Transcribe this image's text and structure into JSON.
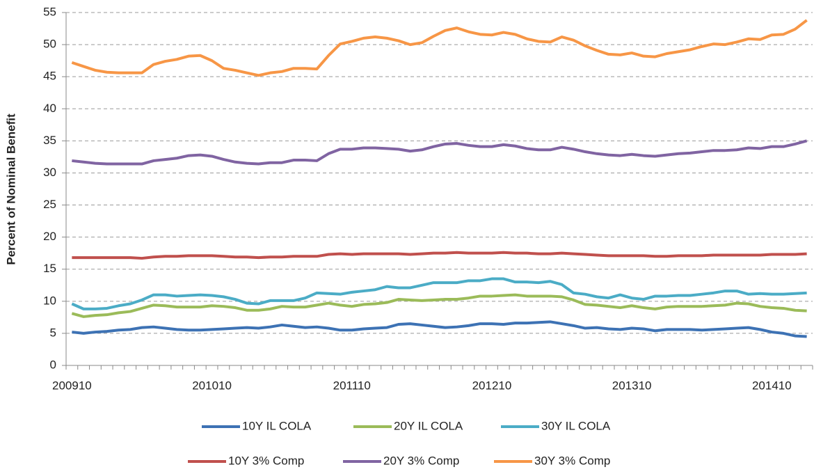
{
  "chart_data": {
    "type": "line",
    "y_label": "Percent of Nominal Benefit",
    "categories": [
      "200910",
      null,
      null,
      null,
      null,
      null,
      null,
      null,
      null,
      null,
      null,
      null,
      "201010",
      null,
      null,
      null,
      null,
      null,
      null,
      null,
      null,
      null,
      null,
      null,
      "201110",
      null,
      null,
      null,
      null,
      null,
      null,
      null,
      null,
      null,
      null,
      null,
      "201210",
      null,
      null,
      null,
      null,
      null,
      null,
      null,
      null,
      null,
      null,
      null,
      "201310",
      null,
      null,
      null,
      null,
      null,
      null,
      null,
      null,
      null,
      null,
      null,
      "201410",
      null,
      null,
      null
    ],
    "ylim": [
      0,
      55
    ],
    "yticks": [
      0,
      5,
      10,
      15,
      20,
      25,
      30,
      35,
      40,
      45,
      50,
      55
    ],
    "grid": true,
    "legend": "bottom",
    "series": [
      {
        "name": "10Y IL COLA",
        "color": "#3d72b4",
        "values": [
          5.2,
          5.0,
          5.2,
          5.3,
          5.5,
          5.6,
          5.9,
          6.0,
          5.8,
          5.6,
          5.5,
          5.5,
          5.6,
          5.7,
          5.8,
          5.9,
          5.8,
          6.0,
          6.3,
          6.1,
          5.9,
          6.0,
          5.8,
          5.5,
          5.5,
          5.7,
          5.8,
          5.9,
          6.4,
          6.5,
          6.3,
          6.1,
          5.9,
          6.0,
          6.2,
          6.5,
          6.5,
          6.4,
          6.6,
          6.6,
          6.7,
          6.8,
          6.5,
          6.2,
          5.8,
          5.9,
          5.7,
          5.6,
          5.8,
          5.7,
          5.4,
          5.6,
          5.6,
          5.6,
          5.5,
          5.6,
          5.7,
          5.8,
          5.9,
          5.6,
          5.2,
          5.0,
          4.6,
          4.5
        ]
      },
      {
        "name": "20Y IL COLA",
        "color": "#9bbb59",
        "values": [
          8.1,
          7.6,
          7.8,
          7.9,
          8.2,
          8.4,
          8.9,
          9.4,
          9.3,
          9.1,
          9.1,
          9.1,
          9.3,
          9.2,
          9.0,
          8.6,
          8.6,
          8.8,
          9.2,
          9.1,
          9.1,
          9.4,
          9.7,
          9.4,
          9.2,
          9.5,
          9.6,
          9.8,
          10.3,
          10.2,
          10.1,
          10.2,
          10.3,
          10.3,
          10.5,
          10.8,
          10.8,
          10.9,
          11.0,
          10.8,
          10.8,
          10.8,
          10.7,
          10.2,
          9.5,
          9.4,
          9.2,
          9.0,
          9.3,
          9.0,
          8.8,
          9.1,
          9.2,
          9.2,
          9.2,
          9.3,
          9.4,
          9.7,
          9.6,
          9.2,
          9.0,
          8.9,
          8.6,
          8.5
        ]
      },
      {
        "name": "30Y IL COLA",
        "color": "#4bacc6",
        "values": [
          9.6,
          8.8,
          8.8,
          8.9,
          9.3,
          9.6,
          10.2,
          11.0,
          11.0,
          10.8,
          10.9,
          11.0,
          10.9,
          10.7,
          10.3,
          9.7,
          9.6,
          10.1,
          10.1,
          10.1,
          10.5,
          11.3,
          11.2,
          11.1,
          11.4,
          11.6,
          11.8,
          12.3,
          12.1,
          12.1,
          12.5,
          12.9,
          12.9,
          12.9,
          13.2,
          13.2,
          13.5,
          13.5,
          13.0,
          13.0,
          12.9,
          13.1,
          12.6,
          11.3,
          11.1,
          10.7,
          10.5,
          11.0,
          10.5,
          10.3,
          10.8,
          10.8,
          10.9,
          10.9,
          11.1,
          11.3,
          11.6,
          11.6,
          11.1,
          11.2,
          11.1,
          11.1,
          11.2,
          11.3
        ]
      },
      {
        "name": "10Y 3% Comp",
        "color": "#c0504d",
        "values": [
          16.8,
          16.8,
          16.8,
          16.8,
          16.8,
          16.8,
          16.7,
          16.9,
          17.0,
          17.0,
          17.1,
          17.1,
          17.1,
          17.0,
          16.9,
          16.9,
          16.8,
          16.9,
          16.9,
          17.0,
          17.0,
          17.0,
          17.3,
          17.4,
          17.3,
          17.4,
          17.4,
          17.4,
          17.4,
          17.3,
          17.4,
          17.5,
          17.5,
          17.6,
          17.5,
          17.5,
          17.5,
          17.6,
          17.5,
          17.5,
          17.4,
          17.4,
          17.5,
          17.4,
          17.3,
          17.2,
          17.1,
          17.1,
          17.1,
          17.1,
          17.0,
          17.0,
          17.1,
          17.1,
          17.1,
          17.2,
          17.2,
          17.2,
          17.2,
          17.2,
          17.3,
          17.3,
          17.3,
          17.4
        ]
      },
      {
        "name": "20Y 3% Comp",
        "color": "#8064a2",
        "values": [
          31.9,
          31.7,
          31.5,
          31.4,
          31.4,
          31.4,
          31.4,
          31.9,
          32.1,
          32.3,
          32.7,
          32.8,
          32.6,
          32.1,
          31.7,
          31.5,
          31.4,
          31.6,
          31.6,
          32.0,
          32.0,
          31.9,
          33.0,
          33.7,
          33.7,
          33.9,
          33.9,
          33.8,
          33.7,
          33.4,
          33.6,
          34.1,
          34.5,
          34.6,
          34.3,
          34.1,
          34.1,
          34.4,
          34.2,
          33.8,
          33.6,
          33.6,
          34.0,
          33.7,
          33.3,
          33.0,
          32.8,
          32.7,
          32.9,
          32.7,
          32.6,
          32.8,
          33.0,
          33.1,
          33.3,
          33.5,
          33.5,
          33.6,
          33.9,
          33.8,
          34.1,
          34.1,
          34.5,
          35.0
        ]
      },
      {
        "name": "30Y 3% Comp",
        "color": "#f79646",
        "values": [
          47.2,
          46.6,
          46.0,
          45.7,
          45.6,
          45.6,
          45.6,
          46.9,
          47.4,
          47.7,
          48.2,
          48.3,
          47.5,
          46.3,
          46.0,
          45.6,
          45.2,
          45.6,
          45.8,
          46.3,
          46.3,
          46.2,
          48.3,
          50.1,
          50.5,
          51.0,
          51.2,
          51.0,
          50.6,
          50.0,
          50.3,
          51.3,
          52.2,
          52.6,
          52.0,
          51.6,
          51.5,
          51.9,
          51.6,
          50.9,
          50.5,
          50.4,
          51.2,
          50.7,
          49.8,
          49.1,
          48.5,
          48.4,
          48.7,
          48.2,
          48.1,
          48.6,
          48.9,
          49.2,
          49.7,
          50.1,
          50.0,
          50.4,
          50.9,
          50.8,
          51.5,
          51.6,
          52.4,
          53.8
        ]
      }
    ]
  }
}
